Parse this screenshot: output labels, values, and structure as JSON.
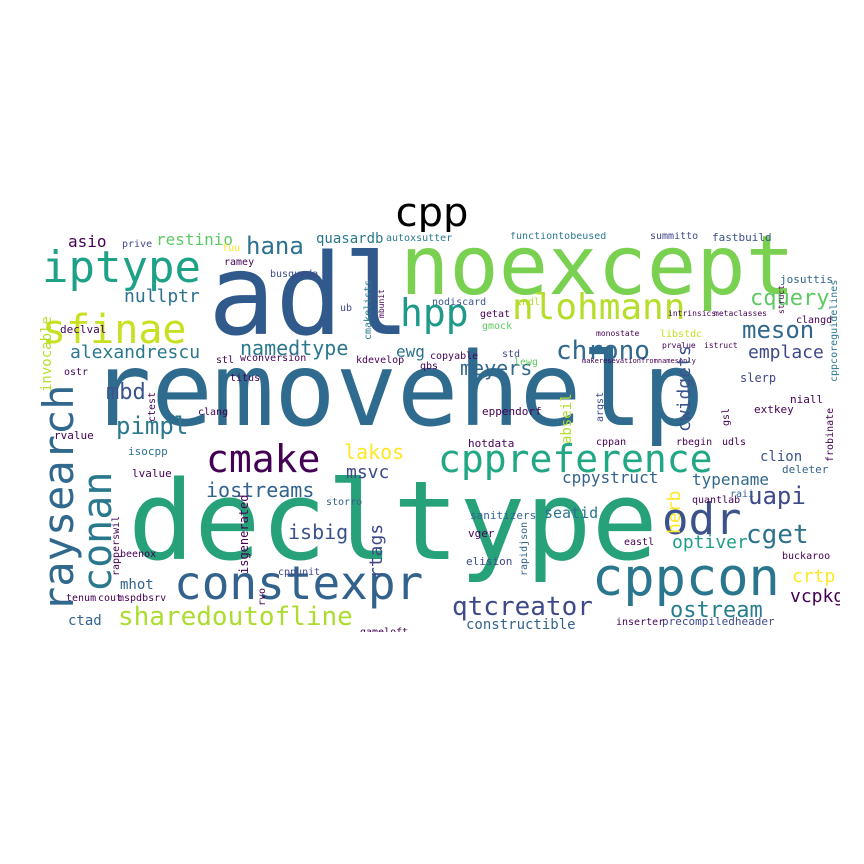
{
  "title": "cpp",
  "words": {
    "removehelp": "removehelp",
    "decltype": "decltype",
    "noexcept": "noexcept",
    "adl": "adl",
    "constexpr": "constexpr",
    "cppcon": "cppcon",
    "cppreference": "cppreference",
    "raysearch": "raysearch",
    "iptype": "iptype",
    "nlohmann": "nlohmann",
    "sfinae": "sfinae",
    "conan": "conan",
    "hpp": "hpp",
    "cmake": "cmake",
    "odr": "odr",
    "chrono": "chrono",
    "hana": "hana",
    "qtcreator": "qtcreator",
    "sharedoutofline": "sharedoutofline",
    "ostream": "ostream",
    "meson": "meson",
    "cquery": "cquery",
    "cget": "cget",
    "uapi": "uapi",
    "pimpl": "pimpl",
    "iostreams": "iostreams",
    "lakos": "lakos",
    "alexandrescu": "alexandrescu",
    "namedtype": "namedtype",
    "emplace": "emplace",
    "meyers": "meyers",
    "cwidgets": "cwidgets",
    "mbd": "mbd",
    "optiver": "optiver",
    "isbig": "isbig",
    "crtp": "crtp",
    "vcpkg": "vcpkg",
    "cppystruct": "cppystruct",
    "typename": "typename",
    "msvc": "msvc",
    "rtags": "rtags",
    "herb": "herb",
    "seatid": "seatid",
    "constructible": "constructible",
    "ctad": "ctad",
    "nullptr": "nullptr",
    "restinio": "restinio",
    "quasardb": "quasardb",
    "asio": "asio",
    "ewg": "ewg",
    "clion": "clion",
    "invocable": "invocable",
    "isgenerated": "isgenerated",
    "abseil": "abseil",
    "mhot": "mhot",
    "slerp": "slerp",
    "eppendorf": "eppendorf",
    "precompiledheader": "precompiledheader",
    "sanitizers": "sanitizers",
    "hotdata": "hotdata",
    "cppcoreguidelines": "cppcoreguidelines",
    "functiontobeused": "functiontobeused",
    "summitto": "summitto",
    "fastbuild": "fastbuild",
    "autoxsutter": "autoxsutter",
    "vger": "vger",
    "elision": "elision",
    "rapidjson": "rapidjson",
    "quantlab": "quantlab",
    "gameloft": "gameloft",
    "inserter": "inserter",
    "cppunit": "cppunit",
    "storro": "storro",
    "isocpp": "isocpp",
    "lvalue": "lvalue",
    "rvalue": "rvalue",
    "declval": "declval",
    "busqueda": "busqueda",
    "ramey": "ramey",
    "rbegin": "rbegin",
    "udls": "udls",
    "deleter": "deleter",
    "raii": "raii",
    "niall": "niall",
    "extkey": "extkey",
    "gsl": "gsl",
    "frobinate": "frobinate",
    "buckaroo": "buckaroo",
    "josuttis": "josuttis",
    "wconversion": "wconversion",
    "kdevelop": "kdevelop",
    "copyable": "copyable",
    "std": "std",
    "argst": "argst",
    "cppan": "cppan",
    "clang": "clang",
    "titus": "titus",
    "mspdbsrv": "mspdbsrv",
    "tenum": "tenum",
    "cout": "cout",
    "rapperswil": "rapperswil",
    "beenox": "beenox",
    "nodiscard": "nodiscard",
    "gmock": "gmock",
    "endl": "endl",
    "libstdc": "libstdc",
    "prive": "prive",
    "fuu": "fuu",
    "ctest": "ctest",
    "stl": "stl",
    "cmakelists": "cmakelists",
    "qbs": "qbs",
    "lewg": "lewg",
    "getat": "getat",
    "ostr": "ostr",
    "ub": "ub",
    "mbunit": "mbunit",
    "clangd": "clangd",
    "eastl": "eastl",
    "intrinsics": "intrinsics",
    "metaclasses": "metaclasses",
    "monostate": "monostate",
    "makeresevationfromnamesonly": "makeresevationfromnamesonly",
    "struct": "struct",
    "rvo": "rvo",
    "istruct": "istruct",
    "prvalue": "prvalue"
  }
}
